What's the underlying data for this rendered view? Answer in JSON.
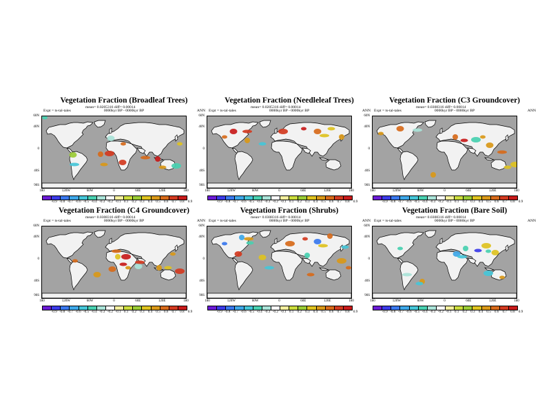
{
  "colors": {
    "ocean": "#a3a3a3",
    "land": "#f2f2f2",
    "coast": "#000000",
    "colorbar": [
      "#6b1bd6",
      "#3b3be8",
      "#3a78ee",
      "#3ea7e8",
      "#45c6d8",
      "#48d0b0",
      "#a9e3d8",
      "#ffffff",
      "#f4ef9e",
      "#cbdc3c",
      "#9acb35",
      "#dec21f",
      "#d99818",
      "#d76a1a",
      "#d23a20",
      "#c81b1b"
    ]
  },
  "shared": {
    "season": "ANN",
    "expt": "Expt = ts-tal-tales",
    "lat_labels": [
      "60N",
      "40N",
      "0",
      "40S",
      "90S"
    ],
    "lon_labels": [
      "180",
      "120W",
      "60W",
      "0",
      "60E",
      "120E",
      "180"
    ],
    "colorbar_labels": [
      "-0.9",
      "-0.8",
      "-0.7",
      "-0.6",
      "-0.5",
      "-0.4",
      "-0.3",
      "-0.2",
      "-0.1",
      "0.1",
      "0.2",
      "0.3",
      "0.4",
      "0.5",
      "0.6",
      "0.7",
      "0.8",
      "0.9"
    ]
  },
  "panels": [
    {
      "title": "Vegetation Fraction (Broadleaf Trees)",
      "stats": "mean= 0.0205316 diff= 0.00014",
      "period": "0000kyr BP - 0000kyr BP"
    },
    {
      "title": "Vegetation Fraction (Needleleaf Trees)",
      "stats": "mean= 0.0205316 diff= 0.00014",
      "period": "0000kyr BP - 0000kyr BP"
    },
    {
      "title": "Vegetation Fraction (C3 Groundcover)",
      "stats": "mean= 0.0308316 diff= 0.00014",
      "period": "0000kyr BP - 0000kyr BP"
    },
    {
      "title": "Vegetation Fraction (C4 Groundcover)",
      "stats": "mean= 0.0308316 diff= 0.00014",
      "period": "0000kyr BP - 0000kyr BP"
    },
    {
      "title": "Vegetation Fraction (Shrubs)",
      "stats": "mean= 0.0308316 diff= 0.00014",
      "period": "0000kyr BP - 0000kyr BP"
    },
    {
      "title": "Vegetation Fraction (Bare Soil)",
      "stats": "mean= 0.0308316 diff= 0.00014",
      "period": "0000kyr BP - 0000kyr BP"
    }
  ],
  "patterns": [
    [
      [
        4,
        2,
        -0.4
      ],
      [
        45,
        56,
        0.2
      ],
      [
        47,
        70,
        -0.5
      ],
      [
        85,
        55,
        0.5
      ],
      [
        90,
        70,
        0.4
      ],
      [
        98,
        54,
        0.6
      ],
      [
        118,
        40,
        0.5
      ],
      [
        117,
        67,
        0.6
      ],
      [
        150,
        60,
        0.5
      ],
      [
        168,
        62,
        0.8
      ],
      [
        175,
        74,
        0.4
      ],
      [
        195,
        72,
        -0.4
      ],
      [
        200,
        40,
        0.3
      ],
      [
        100,
        32,
        -0.3
      ]
    ],
    [
      [
        25,
        30,
        0.5
      ],
      [
        38,
        22,
        0.8
      ],
      [
        58,
        22,
        0.6
      ],
      [
        58,
        35,
        0.4
      ],
      [
        80,
        40,
        -0.5
      ],
      [
        110,
        22,
        0.6
      ],
      [
        140,
        18,
        0.7
      ],
      [
        160,
        22,
        0.5
      ],
      [
        170,
        28,
        0.3
      ],
      [
        195,
        30,
        0.4
      ],
      [
        180,
        18,
        0.3
      ]
    ],
    [
      [
        12,
        25,
        0.4
      ],
      [
        40,
        18,
        0.5
      ],
      [
        65,
        20,
        -0.3
      ],
      [
        120,
        30,
        0.5
      ],
      [
        133,
        35,
        0.9
      ],
      [
        150,
        34,
        -0.4
      ],
      [
        160,
        30,
        0.4
      ],
      [
        170,
        42,
        0.4
      ],
      [
        188,
        52,
        0.5
      ],
      [
        88,
        85,
        0.4
      ],
      [
        196,
        74,
        0.3
      ],
      [
        207,
        70,
        0.3
      ]
    ],
    [
      [
        48,
        50,
        0.5
      ],
      [
        80,
        70,
        0.4
      ],
      [
        108,
        36,
        0.5
      ],
      [
        110,
        44,
        0.3
      ],
      [
        118,
        55,
        0.7
      ],
      [
        122,
        44,
        0.8
      ],
      [
        125,
        60,
        0.4
      ],
      [
        140,
        58,
        -0.3
      ],
      [
        142,
        52,
        0.6
      ],
      [
        170,
        60,
        0.4
      ],
      [
        183,
        60,
        0.3
      ],
      [
        200,
        65,
        0.6
      ],
      [
        190,
        40,
        0.4
      ],
      [
        102,
        62,
        0.5
      ]
    ],
    [
      [
        25,
        25,
        -0.7
      ],
      [
        45,
        40,
        0.6
      ],
      [
        60,
        18,
        0.4
      ],
      [
        50,
        16,
        -0.6
      ],
      [
        62,
        24,
        -0.4
      ],
      [
        120,
        25,
        0.5
      ],
      [
        142,
        18,
        0.6
      ],
      [
        160,
        22,
        -0.7
      ],
      [
        168,
        28,
        0.3
      ],
      [
        178,
        14,
        0.5
      ],
      [
        200,
        30,
        -0.5
      ],
      [
        195,
        50,
        0.4
      ],
      [
        205,
        60,
        0.5
      ],
      [
        80,
        45,
        0.3
      ],
      [
        90,
        60,
        -0.5
      ],
      [
        145,
        42,
        -0.4
      ],
      [
        150,
        70,
        0.5
      ]
    ],
    [
      [
        40,
        32,
        -0.4
      ],
      [
        122,
        40,
        -0.6
      ],
      [
        130,
        44,
        -0.5
      ],
      [
        135,
        32,
        -0.4
      ],
      [
        153,
        35,
        -0.8
      ],
      [
        165,
        28,
        0.3
      ],
      [
        168,
        36,
        -0.4
      ],
      [
        178,
        38,
        0.3
      ],
      [
        50,
        70,
        -0.3
      ],
      [
        72,
        80,
        0.4
      ],
      [
        68,
        83,
        -0.5
      ],
      [
        168,
        68,
        -0.5
      ],
      [
        188,
        74,
        0.4
      ]
    ]
  ]
}
